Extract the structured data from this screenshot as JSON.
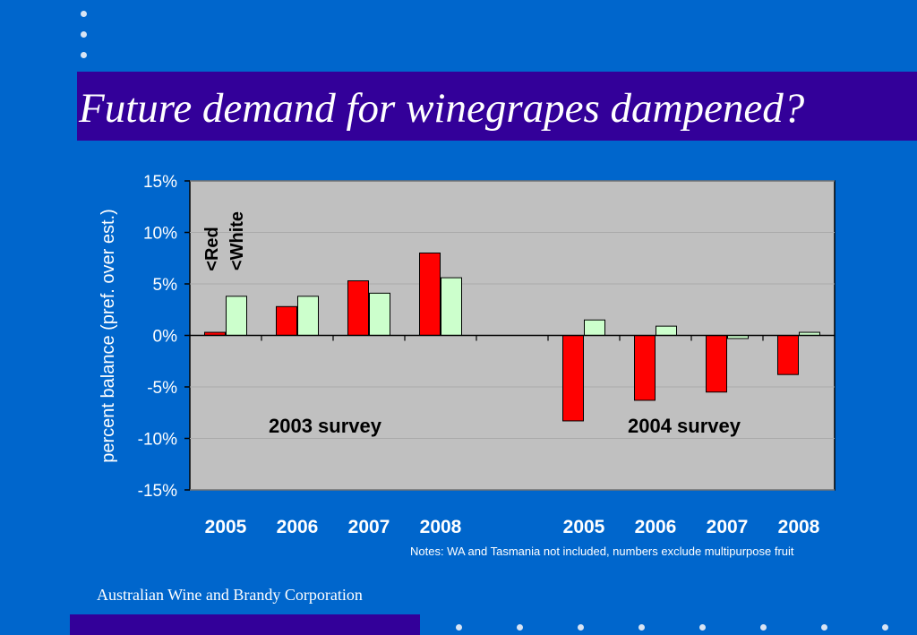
{
  "slide": {
    "title": "Future demand for winegrapes dampened?",
    "footer": "Australian Wine and Brandy Corporation",
    "notes": "Notes:  WA and Tasmania not included, numbers exclude multipurpose fruit"
  },
  "colors": {
    "background": "#0066cc",
    "band": "#330099",
    "plot_area": "#c0c0c0",
    "red": "#ff0000",
    "white": "#ccffcc"
  },
  "chart_data": {
    "type": "bar",
    "categories": [
      "2005",
      "2006",
      "2007",
      "2008",
      "",
      "2005",
      "2006",
      "2007",
      "2008"
    ],
    "series": [
      {
        "name": "<Red",
        "color": "#ff0000",
        "values": [
          0.3,
          2.8,
          5.3,
          8.0,
          null,
          -8.3,
          -6.3,
          -5.5,
          -3.8
        ]
      },
      {
        "name": "<White",
        "color": "#ccffcc",
        "values": [
          3.8,
          3.8,
          4.1,
          5.6,
          null,
          1.5,
          0.9,
          -0.3,
          0.3
        ]
      }
    ],
    "yticks": [
      "15%",
      "10%",
      "5%",
      "0%",
      "-5%",
      "-10%",
      "-15%"
    ],
    "ylim": [
      -15,
      15
    ],
    "ylabel": "percent balance (pref. over est.)",
    "xlabel": "",
    "grid": true,
    "annotations": [
      "2003 survey",
      "2004 survey"
    ]
  }
}
